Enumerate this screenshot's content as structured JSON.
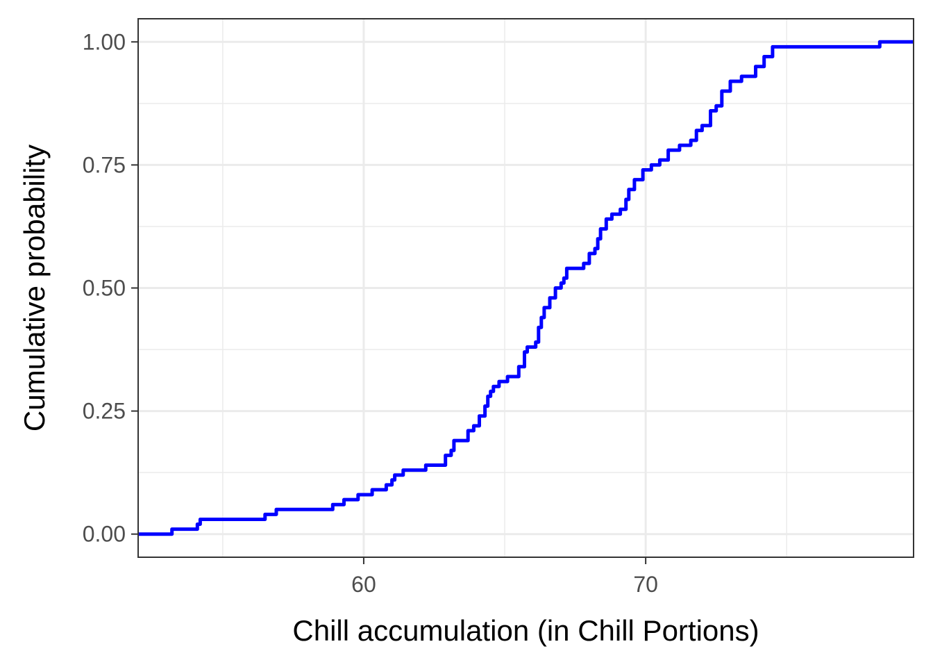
{
  "chart_data": {
    "type": "line",
    "step": true,
    "title": "",
    "xlabel": "Chill accumulation (in Chill Portions)",
    "ylabel": "Cumulative probability",
    "xlim": [
      52,
      79.5
    ],
    "ylim": [
      -0.047,
      1.047
    ],
    "x_ticks": [
      60,
      70
    ],
    "x_tick_labels": [
      "60",
      "70"
    ],
    "y_ticks": [
      0,
      0.25,
      0.5,
      0.75,
      1.0
    ],
    "y_tick_labels": [
      "0.00",
      "0.25",
      "0.50",
      "0.75",
      "1.00"
    ],
    "x_minor_ticks": [
      55,
      65,
      75
    ],
    "y_minor_ticks": [
      0.125,
      0.375,
      0.625,
      0.875
    ],
    "grid": true,
    "line_color": "#0000ff",
    "series": [
      {
        "x": [
          52.0,
          53.2,
          54.1,
          54.2,
          56.5,
          56.9,
          58.9,
          59.3,
          59.8,
          60.3,
          60.8,
          61.0,
          61.1,
          61.4,
          62.2,
          62.9,
          63.1,
          63.2,
          63.7,
          63.9,
          64.1,
          64.3,
          64.4,
          64.5,
          64.6,
          64.8,
          65.1,
          65.5,
          65.7,
          65.8,
          66.1,
          66.2,
          66.3,
          66.4,
          66.6,
          66.8,
          67.0,
          67.1,
          67.2,
          67.8,
          68.0,
          68.2,
          68.3,
          68.4,
          68.6,
          68.8,
          69.1,
          69.3,
          69.4,
          69.6,
          69.9,
          70.2,
          70.5,
          70.8,
          71.2,
          71.6,
          71.8,
          72.0,
          72.3,
          72.5,
          72.7,
          73.0,
          73.4,
          73.9,
          74.2,
          74.5,
          78.3,
          79.5
        ],
        "y": [
          0.0,
          0.01,
          0.02,
          0.03,
          0.04,
          0.05,
          0.06,
          0.07,
          0.08,
          0.09,
          0.1,
          0.11,
          0.12,
          0.13,
          0.14,
          0.16,
          0.17,
          0.19,
          0.21,
          0.22,
          0.24,
          0.26,
          0.28,
          0.29,
          0.3,
          0.31,
          0.32,
          0.34,
          0.37,
          0.38,
          0.39,
          0.42,
          0.44,
          0.46,
          0.48,
          0.5,
          0.51,
          0.52,
          0.54,
          0.55,
          0.57,
          0.58,
          0.6,
          0.62,
          0.64,
          0.65,
          0.66,
          0.68,
          0.7,
          0.72,
          0.74,
          0.75,
          0.76,
          0.78,
          0.79,
          0.8,
          0.82,
          0.83,
          0.86,
          0.87,
          0.9,
          0.92,
          0.93,
          0.95,
          0.97,
          0.99,
          1.0,
          1.0
        ]
      }
    ]
  }
}
